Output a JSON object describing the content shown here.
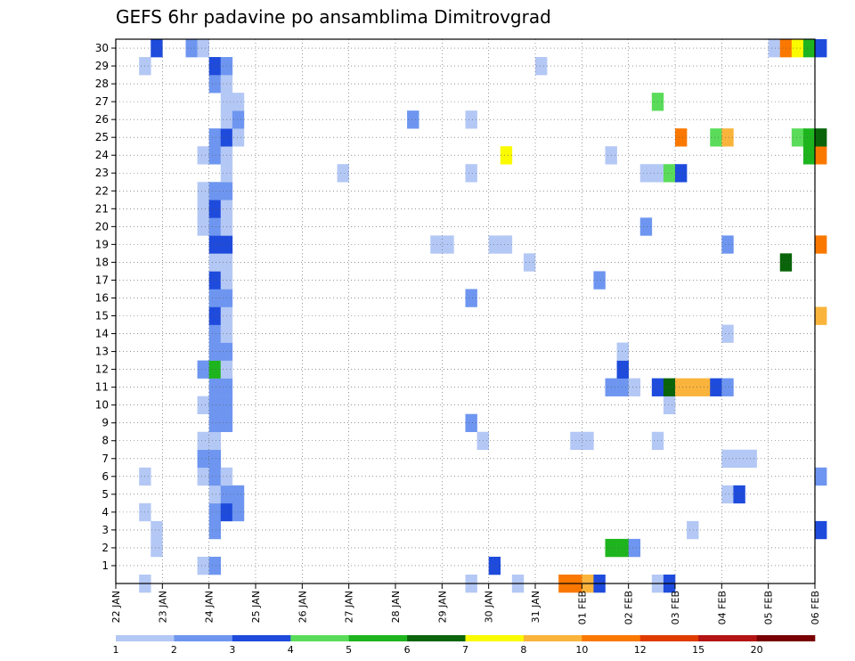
{
  "chart_data": {
    "type": "heatmap",
    "title": "GEFS 6hr padavine po ansamblima Dimitrovgrad",
    "x_ticks": [
      "22 JAN",
      "23 JAN",
      "24 JAN",
      "25 JAN",
      "26 JAN",
      "27 JAN",
      "28 JAN",
      "29 JAN",
      "30 JAN",
      "31 JAN",
      "01 FEB",
      "02 FEB",
      "03 FEB",
      "04 FEB",
      "05 FEB",
      "06 FEB"
    ],
    "y_ticks": [
      "1",
      "2",
      "3",
      "4",
      "5",
      "6",
      "7",
      "8",
      "9",
      "10",
      "11",
      "12",
      "13",
      "14",
      "15",
      "16",
      "17",
      "18",
      "19",
      "20",
      "21",
      "22",
      "23",
      "24",
      "25",
      "26",
      "27",
      "28",
      "29",
      "30"
    ],
    "x_range_days": [
      0,
      15
    ],
    "y_range_members": [
      0,
      30
    ],
    "step_hours": 6,
    "grid": true,
    "legend_placement": "bottom",
    "legend": {
      "thresholds": [
        "1",
        "2",
        "3",
        "4",
        "5",
        "6",
        "7",
        "8",
        "10",
        "12",
        "15",
        "20"
      ],
      "colors": [
        "#b4c8f5",
        "#6e96f0",
        "#1e4bdc",
        "#5adc5a",
        "#1eb41e",
        "#0a640a",
        "#fafa00",
        "#fab43c",
        "#fa7800",
        "#e13c00",
        "#b41414",
        "#780000"
      ]
    },
    "cells": [
      {
        "member": 0,
        "day": 0.5,
        "level": 0
      },
      {
        "member": 0,
        "day": 7.5,
        "level": 0
      },
      {
        "member": 0,
        "day": 8.5,
        "level": 0
      },
      {
        "member": 0,
        "day": 9.5,
        "level": 8
      },
      {
        "member": 0,
        "day": 9.75,
        "level": 8
      },
      {
        "member": 0,
        "day": 10.0,
        "level": 7
      },
      {
        "member": 0,
        "day": 10.25,
        "level": 2
      },
      {
        "member": 0,
        "day": 11.5,
        "level": 0
      },
      {
        "member": 0,
        "day": 11.75,
        "level": 2
      },
      {
        "member": 1,
        "day": 1.75,
        "level": 0
      },
      {
        "member": 1,
        "day": 2.0,
        "level": 1
      },
      {
        "member": 1,
        "day": 8.0,
        "level": 2
      },
      {
        "member": 2,
        "day": 0.75,
        "level": 0
      },
      {
        "member": 2,
        "day": 10.5,
        "level": 4
      },
      {
        "member": 2,
        "day": 10.75,
        "level": 4
      },
      {
        "member": 2,
        "day": 11.0,
        "level": 1
      },
      {
        "member": 3,
        "day": 0.75,
        "level": 0
      },
      {
        "member": 3,
        "day": 2.0,
        "level": 1
      },
      {
        "member": 3,
        "day": 12.25,
        "level": 0
      },
      {
        "member": 3,
        "day": 15.0,
        "level": 2
      },
      {
        "member": 4,
        "day": 0.5,
        "level": 0
      },
      {
        "member": 4,
        "day": 2.0,
        "level": 1
      },
      {
        "member": 4,
        "day": 2.25,
        "level": 2
      },
      {
        "member": 4,
        "day": 2.5,
        "level": 1
      },
      {
        "member": 5,
        "day": 2.0,
        "level": 0
      },
      {
        "member": 5,
        "day": 2.25,
        "level": 1
      },
      {
        "member": 5,
        "day": 2.5,
        "level": 1
      },
      {
        "member": 5,
        "day": 13.0,
        "level": 0
      },
      {
        "member": 5,
        "day": 13.25,
        "level": 2
      },
      {
        "member": 6,
        "day": 0.5,
        "level": 0
      },
      {
        "member": 6,
        "day": 1.75,
        "level": 0
      },
      {
        "member": 6,
        "day": 2.0,
        "level": 1
      },
      {
        "member": 6,
        "day": 2.25,
        "level": 0
      },
      {
        "member": 6,
        "day": 15.0,
        "level": 1
      },
      {
        "member": 7,
        "day": 1.75,
        "level": 1
      },
      {
        "member": 7,
        "day": 2.0,
        "level": 1
      },
      {
        "member": 7,
        "day": 13.0,
        "level": 0
      },
      {
        "member": 7,
        "day": 13.25,
        "level": 0
      },
      {
        "member": 7,
        "day": 13.5,
        "level": 0
      },
      {
        "member": 8,
        "day": 1.75,
        "level": 0
      },
      {
        "member": 8,
        "day": 2.0,
        "level": 0
      },
      {
        "member": 8,
        "day": 7.75,
        "level": 0
      },
      {
        "member": 8,
        "day": 9.75,
        "level": 0
      },
      {
        "member": 8,
        "day": 10.0,
        "level": 0
      },
      {
        "member": 8,
        "day": 11.5,
        "level": 0
      },
      {
        "member": 9,
        "day": 2.0,
        "level": 1
      },
      {
        "member": 9,
        "day": 2.25,
        "level": 1
      },
      {
        "member": 9,
        "day": 7.5,
        "level": 1
      },
      {
        "member": 10,
        "day": 1.75,
        "level": 0
      },
      {
        "member": 10,
        "day": 2.0,
        "level": 1
      },
      {
        "member": 10,
        "day": 2.25,
        "level": 1
      },
      {
        "member": 10,
        "day": 11.75,
        "level": 0
      },
      {
        "member": 11,
        "day": 2.0,
        "level": 1
      },
      {
        "member": 11,
        "day": 2.25,
        "level": 1
      },
      {
        "member": 11,
        "day": 10.5,
        "level": 1
      },
      {
        "member": 11,
        "day": 10.75,
        "level": 1
      },
      {
        "member": 11,
        "day": 11.0,
        "level": 0
      },
      {
        "member": 11,
        "day": 11.5,
        "level": 2
      },
      {
        "member": 11,
        "day": 11.75,
        "level": 5
      },
      {
        "member": 11,
        "day": 12.0,
        "level": 7
      },
      {
        "member": 11,
        "day": 12.25,
        "level": 7
      },
      {
        "member": 11,
        "day": 12.5,
        "level": 7
      },
      {
        "member": 11,
        "day": 12.75,
        "level": 2
      },
      {
        "member": 11,
        "day": 13.0,
        "level": 1
      },
      {
        "member": 12,
        "day": 1.75,
        "level": 1
      },
      {
        "member": 12,
        "day": 2.0,
        "level": 4
      },
      {
        "member": 12,
        "day": 2.25,
        "level": 0
      },
      {
        "member": 12,
        "day": 10.75,
        "level": 2
      },
      {
        "member": 13,
        "day": 2.0,
        "level": 1
      },
      {
        "member": 13,
        "day": 2.25,
        "level": 1
      },
      {
        "member": 13,
        "day": 10.75,
        "level": 0
      },
      {
        "member": 14,
        "day": 2.0,
        "level": 1
      },
      {
        "member": 14,
        "day": 2.25,
        "level": 0
      },
      {
        "member": 14,
        "day": 13.0,
        "level": 0
      },
      {
        "member": 15,
        "day": 2.0,
        "level": 2
      },
      {
        "member": 15,
        "day": 2.25,
        "level": 0
      },
      {
        "member": 15,
        "day": 15.0,
        "level": 7
      },
      {
        "member": 16,
        "day": 2.0,
        "level": 1
      },
      {
        "member": 16,
        "day": 2.25,
        "level": 1
      },
      {
        "member": 16,
        "day": 7.5,
        "level": 1
      },
      {
        "member": 17,
        "day": 2.0,
        "level": 2
      },
      {
        "member": 17,
        "day": 2.25,
        "level": 0
      },
      {
        "member": 17,
        "day": 10.25,
        "level": 1
      },
      {
        "member": 18,
        "day": 2.0,
        "level": 0
      },
      {
        "member": 18,
        "day": 2.25,
        "level": 0
      },
      {
        "member": 18,
        "day": 8.75,
        "level": 0
      },
      {
        "member": 18,
        "day": 14.25,
        "level": 5
      },
      {
        "member": 19,
        "day": 2.0,
        "level": 2
      },
      {
        "member": 19,
        "day": 2.25,
        "level": 2
      },
      {
        "member": 19,
        "day": 6.75,
        "level": 0
      },
      {
        "member": 19,
        "day": 7.0,
        "level": 0
      },
      {
        "member": 19,
        "day": 8.0,
        "level": 0
      },
      {
        "member": 19,
        "day": 8.25,
        "level": 0
      },
      {
        "member": 19,
        "day": 13.0,
        "level": 1
      },
      {
        "member": 19,
        "day": 15.0,
        "level": 8
      },
      {
        "member": 20,
        "day": 1.75,
        "level": 0
      },
      {
        "member": 20,
        "day": 2.0,
        "level": 1
      },
      {
        "member": 20,
        "day": 2.25,
        "level": 0
      },
      {
        "member": 20,
        "day": 11.25,
        "level": 1
      },
      {
        "member": 21,
        "day": 1.75,
        "level": 0
      },
      {
        "member": 21,
        "day": 2.0,
        "level": 2
      },
      {
        "member": 21,
        "day": 2.25,
        "level": 0
      },
      {
        "member": 22,
        "day": 1.75,
        "level": 0
      },
      {
        "member": 22,
        "day": 2.0,
        "level": 1
      },
      {
        "member": 22,
        "day": 2.25,
        "level": 1
      },
      {
        "member": 23,
        "day": 2.25,
        "level": 0
      },
      {
        "member": 23,
        "day": 4.75,
        "level": 0
      },
      {
        "member": 23,
        "day": 7.5,
        "level": 0
      },
      {
        "member": 23,
        "day": 11.25,
        "level": 0
      },
      {
        "member": 23,
        "day": 11.5,
        "level": 0
      },
      {
        "member": 23,
        "day": 11.75,
        "level": 3
      },
      {
        "member": 23,
        "day": 12.0,
        "level": 2
      },
      {
        "member": 24,
        "day": 1.75,
        "level": 0
      },
      {
        "member": 24,
        "day": 2.0,
        "level": 1
      },
      {
        "member": 24,
        "day": 2.25,
        "level": 0
      },
      {
        "member": 24,
        "day": 8.25,
        "level": 6
      },
      {
        "member": 24,
        "day": 10.5,
        "level": 0
      },
      {
        "member": 24,
        "day": 14.75,
        "level": 4
      },
      {
        "member": 24,
        "day": 15.0,
        "level": 8
      },
      {
        "member": 25,
        "day": 2.0,
        "level": 1
      },
      {
        "member": 25,
        "day": 2.25,
        "level": 2
      },
      {
        "member": 25,
        "day": 2.5,
        "level": 0
      },
      {
        "member": 25,
        "day": 12.0,
        "level": 8
      },
      {
        "member": 25,
        "day": 12.75,
        "level": 3
      },
      {
        "member": 25,
        "day": 13.0,
        "level": 7
      },
      {
        "member": 25,
        "day": 14.5,
        "level": 3
      },
      {
        "member": 25,
        "day": 14.75,
        "level": 4
      },
      {
        "member": 25,
        "day": 15.0,
        "level": 5
      },
      {
        "member": 26,
        "day": 2.25,
        "level": 0
      },
      {
        "member": 26,
        "day": 2.5,
        "level": 1
      },
      {
        "member": 26,
        "day": 6.25,
        "level": 1
      },
      {
        "member": 26,
        "day": 7.5,
        "level": 0
      },
      {
        "member": 27,
        "day": 2.25,
        "level": 0
      },
      {
        "member": 27,
        "day": 2.5,
        "level": 0
      },
      {
        "member": 27,
        "day": 11.5,
        "level": 3
      },
      {
        "member": 28,
        "day": 2.0,
        "level": 1
      },
      {
        "member": 28,
        "day": 2.25,
        "level": 0
      },
      {
        "member": 29,
        "day": 0.5,
        "level": 0
      },
      {
        "member": 29,
        "day": 2.0,
        "level": 2
      },
      {
        "member": 29,
        "day": 2.25,
        "level": 1
      },
      {
        "member": 29,
        "day": 9.0,
        "level": 0
      },
      {
        "member": 30,
        "day": 0.75,
        "level": 2
      },
      {
        "member": 30,
        "day": 1.5,
        "level": 1
      },
      {
        "member": 30,
        "day": 1.75,
        "level": 0
      },
      {
        "member": 30,
        "day": 14.0,
        "level": 0
      },
      {
        "member": 30,
        "day": 14.25,
        "level": 8
      },
      {
        "member": 30,
        "day": 14.5,
        "level": 6
      },
      {
        "member": 30,
        "day": 14.75,
        "level": 4
      },
      {
        "member": 30,
        "day": 15.0,
        "level": 2
      }
    ]
  }
}
